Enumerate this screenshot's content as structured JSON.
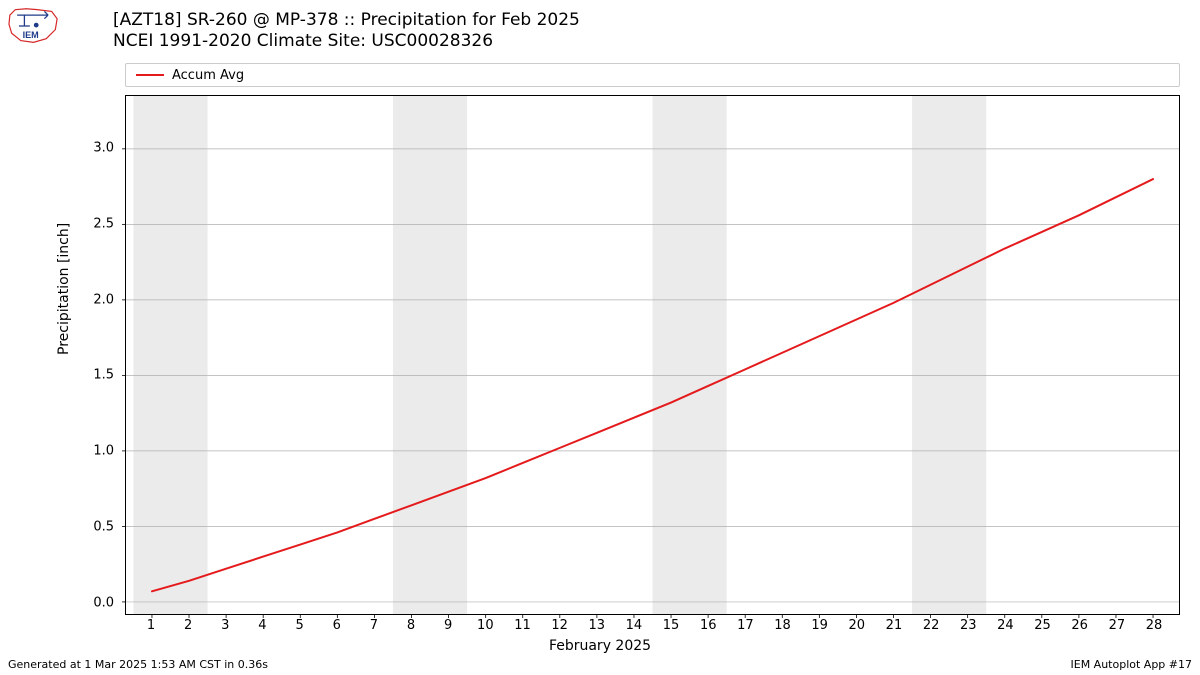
{
  "title": {
    "line1": "[AZT18] SR-260 @ MP-378  :: Precipitation for Feb 2025",
    "line2": "NCEI 1991-2020 Climate Site: USC00028326",
    "fontsize": 17,
    "color": "#000000"
  },
  "chart": {
    "type": "line",
    "background_color": "#ffffff",
    "plot_border_color": "#000000",
    "grid_color": "#b0b0b0",
    "grid_line_width": 0.7,
    "weekend_band_color": "#ebebeb",
    "weekend_bands_x": [
      [
        1,
        2
      ],
      [
        8,
        9
      ],
      [
        15,
        16
      ],
      [
        22,
        23
      ]
    ],
    "xlim": [
      0.3,
      28.7
    ],
    "ylim": [
      -0.08,
      3.35
    ],
    "xticks": [
      1,
      2,
      3,
      4,
      5,
      6,
      7,
      8,
      9,
      10,
      11,
      12,
      13,
      14,
      15,
      16,
      17,
      18,
      19,
      20,
      21,
      22,
      23,
      24,
      25,
      26,
      27,
      28
    ],
    "yticks": [
      0.0,
      0.5,
      1.0,
      1.5,
      2.0,
      2.5,
      3.0
    ],
    "ytick_labels": [
      "0.0",
      "0.5",
      "1.0",
      "1.5",
      "2.0",
      "2.5",
      "3.0"
    ],
    "xlabel": "February 2025",
    "ylabel": "Precipitation [inch]",
    "label_fontsize": 14,
    "tick_fontsize": 13,
    "tick_color": "#000000",
    "series": [
      {
        "name": "Accum Avg",
        "color": "#e41a1c",
        "line_width": 2,
        "x": [
          1,
          2,
          3,
          4,
          5,
          6,
          7,
          8,
          9,
          10,
          11,
          12,
          13,
          14,
          15,
          16,
          17,
          18,
          19,
          20,
          21,
          22,
          23,
          24,
          25,
          26,
          27,
          28
        ],
        "y": [
          0.07,
          0.14,
          0.22,
          0.3,
          0.38,
          0.46,
          0.55,
          0.64,
          0.73,
          0.82,
          0.92,
          1.02,
          1.12,
          1.22,
          1.32,
          1.43,
          1.54,
          1.65,
          1.76,
          1.87,
          1.98,
          2.1,
          2.22,
          2.34,
          2.45,
          2.56,
          2.68,
          2.8
        ]
      }
    ]
  },
  "legend": {
    "items": [
      {
        "label": "Accum Avg",
        "color": "#e41a1c"
      }
    ],
    "border_color": "#cccccc",
    "fontsize": 13
  },
  "footer": {
    "left": "Generated at 1 Mar 2025 1:53 AM CST in 0.36s",
    "right": "IEM Autoplot App #17",
    "fontsize": 11
  },
  "logo": {
    "outline_color": "#d62728",
    "dot_color": "#1f3b8a",
    "label": "IEM",
    "label_color": "#1f3b8a"
  }
}
